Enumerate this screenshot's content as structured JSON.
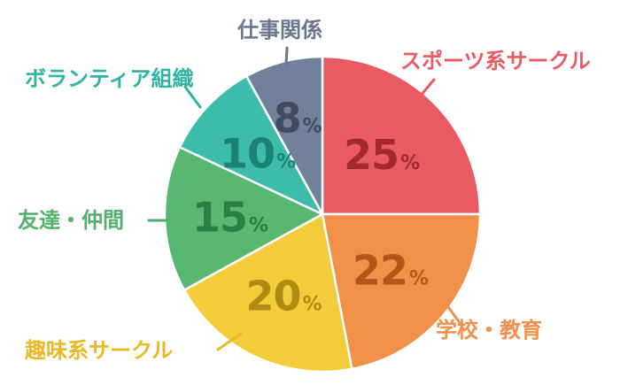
{
  "chart_data": {
    "type": "pie",
    "slices": [
      {
        "label": "スポーツ系サークル",
        "value": 25,
        "color": "#e95a63",
        "textColor": "#a32930",
        "labelColor": "#e95a63"
      },
      {
        "label": "学校・教育",
        "value": 22,
        "color": "#f19049",
        "textColor": "#b2561a",
        "labelColor": "#f19049"
      },
      {
        "label": "趣味系サークル",
        "value": 20,
        "color": "#f2cc3a",
        "textColor": "#b18a12",
        "labelColor": "#e8b825"
      },
      {
        "label": "友達・仲間",
        "value": 15,
        "color": "#58b770",
        "textColor": "#2a7f45",
        "labelColor": "#52b06c"
      },
      {
        "label": "ボランティア組織",
        "value": 10,
        "color": "#3dbcab",
        "textColor": "#1a8374",
        "labelColor": "#2fb3a2"
      },
      {
        "label": "仕事関係",
        "value": 8,
        "color": "#72819a",
        "textColor": "#3e4b60",
        "labelColor": "#6a778e"
      }
    ],
    "percent_suffix": "%",
    "start_angle_deg": 0,
    "direction": "clockwise"
  }
}
